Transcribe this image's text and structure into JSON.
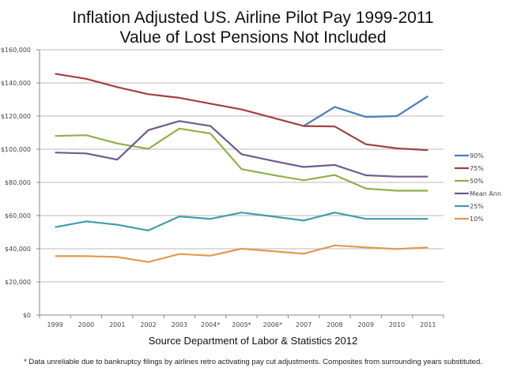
{
  "chart_data": {
    "type": "line",
    "title": "Inflation Adjusted US. Airline Pilot Pay 1999-2011",
    "subtitle": "Value of Lost Pensions Not Included",
    "xlabel": "Source Department of Labor & Statistics 2012",
    "ylabel": "",
    "footnote": "* Data unreliable due to bankruptcy filings by airlines retro activating pay cut adjustments. Composites from surrounding years substituted.",
    "categories": [
      "1999",
      "2000",
      "2001",
      "2002",
      "2003",
      "2004*",
      "2005*",
      "2006*",
      "2007",
      "2008",
      "2009",
      "2010",
      "2011"
    ],
    "ylim": [
      0,
      160000
    ],
    "yticks": [
      0,
      20000,
      40000,
      60000,
      80000,
      100000,
      120000,
      140000,
      160000
    ],
    "ytick_labels": [
      "$0",
      "$20,000",
      "$40,000",
      "$60,000",
      "$80,000",
      "$100,000",
      "$120,000",
      "$140,000",
      "$160,000"
    ],
    "grid": true,
    "legend_position": "right",
    "series": [
      {
        "name": "90%",
        "color": "#4A7EBB",
        "values": [
          null,
          null,
          null,
          null,
          null,
          null,
          null,
          null,
          114000,
          125500,
          119500,
          120000,
          132000
        ]
      },
      {
        "name": "75%",
        "color": "#A0413E",
        "values": [
          145500,
          142500,
          137500,
          133200,
          131000,
          127500,
          124000,
          119000,
          114000,
          113700,
          103000,
          100500,
          99500
        ]
      },
      {
        "name": "50%",
        "color": "#8FB04A",
        "values": [
          108000,
          108500,
          103500,
          100300,
          112500,
          109500,
          88000,
          84500,
          81300,
          84500,
          76300,
          75000,
          75000
        ]
      },
      {
        "name": "Mean Ann",
        "color": "#71598F",
        "values": [
          98000,
          97500,
          93700,
          111500,
          117000,
          114000,
          97000,
          93000,
          89300,
          90500,
          84300,
          83500,
          83500
        ]
      },
      {
        "name": "25%",
        "color": "#3F9EAD",
        "values": [
          53000,
          56500,
          54500,
          51000,
          59500,
          58000,
          61800,
          59500,
          57000,
          61800,
          58000,
          58000,
          58000
        ]
      },
      {
        "name": "10%",
        "color": "#E19A4F",
        "values": [
          35500,
          35500,
          35000,
          32000,
          36800,
          35800,
          40000,
          38500,
          37000,
          42000,
          40800,
          39800,
          40800
        ]
      }
    ]
  }
}
